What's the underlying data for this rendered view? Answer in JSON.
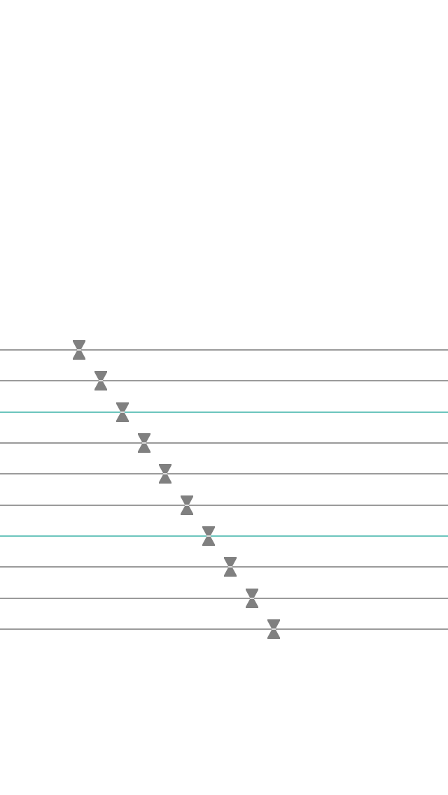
{
  "colors": {
    "track_default": "#9a9a9a",
    "track_active": "#6cc5bd",
    "thumb": "#808080",
    "thumb_notch": "#dcdcdc",
    "background": "#ffffff"
  },
  "thumb_icon": "hourglass-shaped-slider-handle",
  "sliders": [
    {
      "value": 0.177,
      "active": false
    },
    {
      "value": 0.225,
      "active": false
    },
    {
      "value": 0.273,
      "active": true
    },
    {
      "value": 0.322,
      "active": false
    },
    {
      "value": 0.369,
      "active": false
    },
    {
      "value": 0.417,
      "active": false
    },
    {
      "value": 0.466,
      "active": true
    },
    {
      "value": 0.514,
      "active": false
    },
    {
      "value": 0.562,
      "active": false
    },
    {
      "value": 0.611,
      "active": false
    }
  ]
}
